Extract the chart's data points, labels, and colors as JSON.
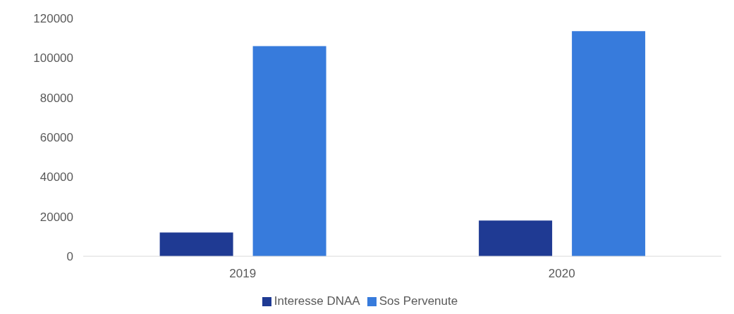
{
  "chart_data": {
    "type": "bar",
    "categories": [
      "2019",
      "2020"
    ],
    "series": [
      {
        "name": "Interesse DNAA",
        "color": "#1f3a93",
        "values": [
          12000,
          18000
        ]
      },
      {
        "name": "Sos Pervenute",
        "color": "#377bdc",
        "values": [
          106000,
          113500
        ]
      }
    ],
    "ylim": [
      0,
      120000
    ],
    "yticks": [
      0,
      20000,
      40000,
      60000,
      80000,
      100000,
      120000
    ],
    "legend": "bottom"
  }
}
